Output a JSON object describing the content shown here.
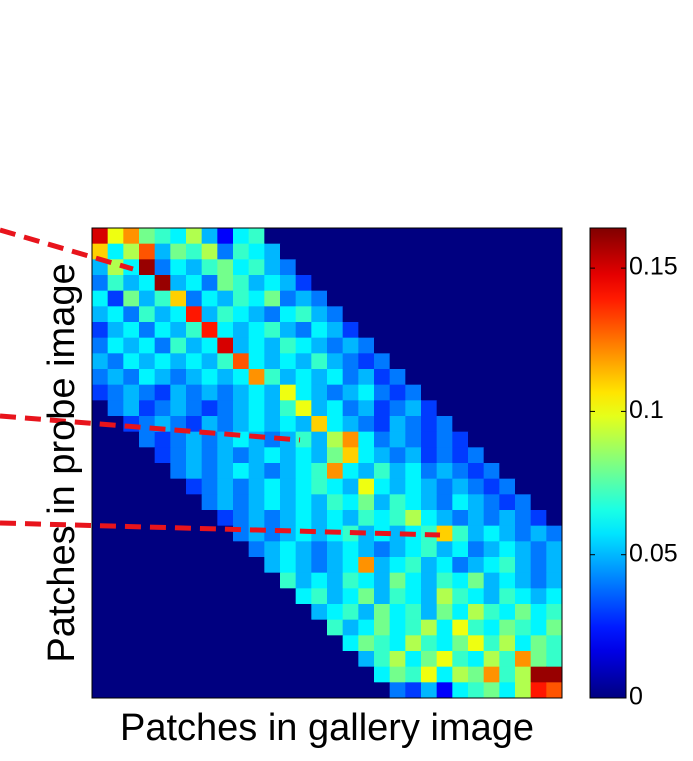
{
  "chart_data": {
    "type": "heatmap",
    "xlabel": "Patches in gallery image",
    "ylabel": "Patches in probe image",
    "colormap": "jet",
    "clim": [
      0,
      0.164
    ],
    "cticks": [
      0,
      0.05,
      0.1,
      0.15
    ],
    "values": [
      [
        0.15,
        0.1,
        0.12,
        0.08,
        0.07,
        0.06,
        0.09,
        0.05,
        0.02,
        0.06,
        0.07,
        0,
        0,
        0,
        0,
        0,
        0,
        0,
        0,
        0,
        0,
        0,
        0,
        0,
        0,
        0,
        0,
        0,
        0,
        0
      ],
      [
        0.11,
        0.06,
        0.09,
        0.13,
        0.05,
        0.08,
        0.07,
        0.09,
        0.04,
        0.07,
        0.06,
        0.05,
        0,
        0,
        0,
        0,
        0,
        0,
        0,
        0,
        0,
        0,
        0,
        0,
        0,
        0,
        0,
        0,
        0,
        0
      ],
      [
        0.05,
        0.09,
        0.06,
        0.16,
        0.04,
        0.06,
        0.05,
        0.07,
        0.08,
        0.06,
        0.07,
        0.05,
        0.04,
        0,
        0,
        0,
        0,
        0,
        0,
        0,
        0,
        0,
        0,
        0,
        0,
        0,
        0,
        0,
        0,
        0
      ],
      [
        0.04,
        0.07,
        0.05,
        0.06,
        0.16,
        0.05,
        0.06,
        0.04,
        0.08,
        0.07,
        0.05,
        0.06,
        0.05,
        0.03,
        0,
        0,
        0,
        0,
        0,
        0,
        0,
        0,
        0,
        0,
        0,
        0,
        0,
        0,
        0,
        0
      ],
      [
        0.06,
        0.03,
        0.08,
        0.05,
        0.07,
        0.11,
        0.04,
        0.06,
        0.05,
        0.07,
        0.06,
        0.08,
        0.04,
        0.05,
        0.04,
        0,
        0,
        0,
        0,
        0,
        0,
        0,
        0,
        0,
        0,
        0,
        0,
        0,
        0,
        0
      ],
      [
        0.05,
        0.06,
        0.04,
        0.07,
        0.05,
        0.06,
        0.14,
        0.05,
        0.07,
        0.06,
        0.05,
        0.04,
        0.06,
        0.07,
        0.05,
        0.04,
        0,
        0,
        0,
        0,
        0,
        0,
        0,
        0,
        0,
        0,
        0,
        0,
        0,
        0
      ],
      [
        0.03,
        0.05,
        0.06,
        0.04,
        0.06,
        0.05,
        0.07,
        0.14,
        0.06,
        0.05,
        0.06,
        0.07,
        0.05,
        0.04,
        0.06,
        0.05,
        0.03,
        0,
        0,
        0,
        0,
        0,
        0,
        0,
        0,
        0,
        0,
        0,
        0,
        0
      ],
      [
        0.04,
        0.06,
        0.05,
        0.06,
        0.04,
        0.07,
        0.05,
        0.06,
        0.15,
        0.05,
        0.06,
        0.05,
        0.07,
        0.06,
        0.05,
        0.04,
        0.05,
        0.04,
        0,
        0,
        0,
        0,
        0,
        0,
        0,
        0,
        0,
        0,
        0,
        0
      ],
      [
        0.05,
        0.04,
        0.06,
        0.05,
        0.06,
        0.05,
        0.06,
        0.05,
        0.07,
        0.13,
        0.06,
        0.05,
        0.06,
        0.05,
        0.07,
        0.05,
        0.04,
        0.03,
        0.04,
        0,
        0,
        0,
        0,
        0,
        0,
        0,
        0,
        0,
        0,
        0
      ],
      [
        0.04,
        0.05,
        0.04,
        0.06,
        0.05,
        0.04,
        0.05,
        0.06,
        0.05,
        0.06,
        0.12,
        0.07,
        0.05,
        0.06,
        0.05,
        0.06,
        0.04,
        0.05,
        0.03,
        0.04,
        0,
        0,
        0,
        0,
        0,
        0,
        0,
        0,
        0,
        0
      ],
      [
        0.03,
        0.04,
        0.05,
        0.04,
        0.03,
        0.05,
        0.04,
        0.05,
        0.04,
        0.05,
        0.06,
        0.05,
        0.1,
        0.06,
        0.05,
        0.04,
        0.05,
        0.06,
        0.04,
        0.03,
        0.04,
        0,
        0,
        0,
        0,
        0,
        0,
        0,
        0,
        0
      ],
      [
        0,
        0.04,
        0.05,
        0.03,
        0.04,
        0.05,
        0.04,
        0.03,
        0.04,
        0.05,
        0.06,
        0.05,
        0.07,
        0.1,
        0.05,
        0.06,
        0.04,
        0.05,
        0.03,
        0.04,
        0.05,
        0.03,
        0,
        0,
        0,
        0,
        0,
        0,
        0,
        0
      ],
      [
        0,
        0,
        0.03,
        0.04,
        0.05,
        0.04,
        0.03,
        0.05,
        0.04,
        0.05,
        0.06,
        0.05,
        0.06,
        0.05,
        0.11,
        0.06,
        0.05,
        0.04,
        0.03,
        0.05,
        0.04,
        0.03,
        0.04,
        0,
        0,
        0,
        0,
        0,
        0,
        0
      ],
      [
        0,
        0,
        0,
        0.04,
        0.03,
        0.04,
        0.05,
        0.04,
        0.05,
        0.06,
        0.05,
        0.04,
        0.05,
        0.07,
        0.05,
        0.09,
        0.12,
        0.06,
        0.04,
        0.05,
        0.04,
        0.03,
        0.04,
        0.03,
        0,
        0,
        0,
        0,
        0,
        0
      ],
      [
        0,
        0,
        0,
        0,
        0.03,
        0.04,
        0.05,
        0.04,
        0.05,
        0.04,
        0.05,
        0.06,
        0.05,
        0.06,
        0.05,
        0.08,
        0.11,
        0.06,
        0.05,
        0.04,
        0.05,
        0.03,
        0.04,
        0.03,
        0.04,
        0,
        0,
        0,
        0,
        0
      ],
      [
        0,
        0,
        0,
        0,
        0,
        0.04,
        0.05,
        0.04,
        0.05,
        0.06,
        0.05,
        0.04,
        0.05,
        0.06,
        0.07,
        0.12,
        0.06,
        0.05,
        0.07,
        0.05,
        0.06,
        0.04,
        0.05,
        0.04,
        0.03,
        0.04,
        0,
        0,
        0,
        0
      ],
      [
        0,
        0,
        0,
        0,
        0,
        0,
        0.03,
        0.04,
        0.05,
        0.04,
        0.05,
        0.06,
        0.05,
        0.06,
        0.07,
        0.06,
        0.05,
        0.1,
        0.06,
        0.05,
        0.06,
        0.05,
        0.04,
        0.05,
        0.04,
        0.03,
        0.04,
        0,
        0,
        0
      ],
      [
        0,
        0,
        0,
        0,
        0,
        0,
        0,
        0.04,
        0.05,
        0.04,
        0.05,
        0.06,
        0.05,
        0.06,
        0.05,
        0.07,
        0.06,
        0.08,
        0.05,
        0.07,
        0.06,
        0.05,
        0.04,
        0.06,
        0.05,
        0.04,
        0.03,
        0.04,
        0,
        0
      ],
      [
        0,
        0,
        0,
        0,
        0,
        0,
        0,
        0,
        0.03,
        0.04,
        0.05,
        0.04,
        0.05,
        0.06,
        0.05,
        0.06,
        0.05,
        0.07,
        0.06,
        0.07,
        0.09,
        0.06,
        0.05,
        0.04,
        0.05,
        0.04,
        0.05,
        0.04,
        0.03,
        0
      ],
      [
        0,
        0,
        0,
        0,
        0,
        0,
        0,
        0,
        0,
        0.04,
        0.05,
        0.04,
        0.05,
        0.06,
        0.05,
        0.06,
        0.07,
        0.05,
        0.06,
        0.05,
        0.06,
        0.07,
        0.11,
        0.07,
        0.05,
        0.06,
        0.05,
        0.04,
        0.05,
        0.04
      ],
      [
        0,
        0,
        0,
        0,
        0,
        0,
        0,
        0,
        0,
        0,
        0.04,
        0.05,
        0.06,
        0.05,
        0.04,
        0.05,
        0.06,
        0.05,
        0.04,
        0.05,
        0.06,
        0.07,
        0.05,
        0.06,
        0.04,
        0.05,
        0.06,
        0.05,
        0.04,
        0.05
      ],
      [
        0,
        0,
        0,
        0,
        0,
        0,
        0,
        0,
        0,
        0,
        0,
        0.05,
        0.06,
        0.05,
        0.04,
        0.05,
        0.06,
        0.12,
        0.05,
        0.06,
        0.07,
        0.05,
        0.06,
        0.04,
        0.05,
        0.06,
        0.07,
        0.05,
        0.04,
        0.05
      ],
      [
        0,
        0,
        0,
        0,
        0,
        0,
        0,
        0,
        0,
        0,
        0,
        0,
        0.07,
        0.05,
        0.06,
        0.05,
        0.07,
        0.06,
        0.05,
        0.08,
        0.06,
        0.05,
        0.07,
        0.06,
        0.08,
        0.05,
        0.06,
        0.05,
        0.04,
        0.05
      ],
      [
        0,
        0,
        0,
        0,
        0,
        0,
        0,
        0,
        0,
        0,
        0,
        0,
        0,
        0.06,
        0.07,
        0.05,
        0.06,
        0.08,
        0.05,
        0.07,
        0.06,
        0.05,
        0.09,
        0.07,
        0.06,
        0.05,
        0.07,
        0.06,
        0.05,
        0.06
      ],
      [
        0,
        0,
        0,
        0,
        0,
        0,
        0,
        0,
        0,
        0,
        0,
        0,
        0,
        0,
        0.05,
        0.06,
        0.07,
        0.05,
        0.08,
        0.06,
        0.07,
        0.05,
        0.08,
        0.06,
        0.09,
        0.07,
        0.06,
        0.08,
        0.06,
        0.07
      ],
      [
        0,
        0,
        0,
        0,
        0,
        0,
        0,
        0,
        0,
        0,
        0,
        0,
        0,
        0,
        0,
        0.07,
        0.05,
        0.06,
        0.08,
        0.06,
        0.07,
        0.09,
        0.06,
        0.1,
        0.07,
        0.06,
        0.08,
        0.07,
        0.06,
        0.08
      ],
      [
        0,
        0,
        0,
        0,
        0,
        0,
        0,
        0,
        0,
        0,
        0,
        0,
        0,
        0,
        0,
        0,
        0.06,
        0.08,
        0.07,
        0.06,
        0.09,
        0.07,
        0.06,
        0.08,
        0.1,
        0.07,
        0.09,
        0.06,
        0.08,
        0.07
      ],
      [
        0,
        0,
        0,
        0,
        0,
        0,
        0,
        0,
        0,
        0,
        0,
        0,
        0,
        0,
        0,
        0,
        0,
        0.05,
        0.07,
        0.09,
        0.06,
        0.08,
        0.1,
        0.07,
        0.06,
        0.09,
        0.07,
        0.12,
        0.08,
        0.07
      ],
      [
        0,
        0,
        0,
        0,
        0,
        0,
        0,
        0,
        0,
        0,
        0,
        0,
        0,
        0,
        0,
        0,
        0,
        0,
        0.06,
        0.08,
        0.07,
        0.1,
        0.06,
        0.09,
        0.08,
        0.12,
        0.07,
        0.09,
        0.16,
        0.16
      ],
      [
        0,
        0,
        0,
        0,
        0,
        0,
        0,
        0,
        0,
        0,
        0,
        0,
        0,
        0,
        0,
        0,
        0,
        0,
        0,
        0.04,
        0.03,
        0.05,
        0.02,
        0.06,
        0.07,
        0.08,
        0.06,
        0.09,
        0.14,
        0.13
      ]
    ]
  }
}
